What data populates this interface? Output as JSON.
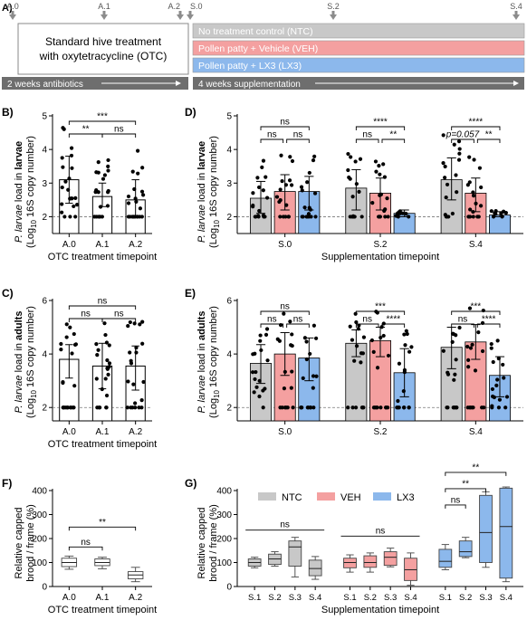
{
  "colors": {
    "ntc": "#c8c8c8",
    "veh": "#f4a0a0",
    "lx3": "#8cb8ec",
    "arrow_bar": "#6e6e6e",
    "timeline_marker": "#8c8c8c"
  },
  "panel_a": {
    "label": "A)",
    "timepoints": [
      "A.0",
      "A.1",
      "A.2",
      "S.0",
      "S.2",
      "S.4"
    ],
    "otc_box": "Standard hive treatment\nwith oxytetracycline (OTC)",
    "groups": [
      "No treatment control (NTC)",
      "Pollen patty + Vehicle (VEH)",
      "Pollen patty + LX3 (LX3)"
    ],
    "bar_antibiotics": "2 weeks antibiotics",
    "bar_supplementation": "4 weeks supplementation"
  },
  "ylabel_larvae": {
    "species": "P. larvae",
    "pre": " load in ",
    "tissue": "larvae",
    "line2": "(Log10 16S copy number)"
  },
  "ylabel_adults": {
    "species": "P. larvae",
    "pre": " load in ",
    "tissue": "adults",
    "line2": "(Log10 16S copy number)"
  },
  "ylabel_brood": {
    "line1": "Relative capped",
    "line2": "brood / frame (%)"
  },
  "chart_data": [
    {
      "panel": "B)",
      "type": "bar",
      "xlabel": "OTC treatment timepoint",
      "categories": [
        "A.0",
        "A.1",
        "A.2"
      ],
      "ylim": [
        1.5,
        5
      ],
      "yticks": [
        2,
        3,
        4,
        5
      ],
      "values": [
        3.1,
        2.6,
        2.5
      ],
      "sd_low": [
        2.4,
        2.3,
        2.0
      ],
      "sd_high": [
        3.8,
        3.0,
        3.1
      ],
      "dashed_line": 2,
      "significance": [
        {
          "from": 0,
          "to": 1,
          "level": 0,
          "label": "**"
        },
        {
          "from": 1,
          "to": 2,
          "level": 0,
          "label": "ns"
        },
        {
          "from": 0,
          "to": 2,
          "level": 1,
          "label": "***"
        }
      ]
    },
    {
      "panel": "D)",
      "type": "bar",
      "xlabel": "Supplementation timepoint",
      "categories": [
        "S.0",
        "S.2",
        "S.4"
      ],
      "ylim": [
        1.5,
        5
      ],
      "yticks": [
        2,
        3,
        4,
        5
      ],
      "series": [
        {
          "name": "NTC",
          "values": [
            2.55,
            2.85,
            3.1
          ],
          "sd_low": [
            2.1,
            2.2,
            2.5
          ],
          "sd_high": [
            3.05,
            3.4,
            3.75
          ]
        },
        {
          "name": "VEH",
          "values": [
            2.75,
            2.7,
            2.7
          ],
          "sd_low": [
            2.2,
            2.2,
            2.15
          ],
          "sd_high": [
            3.25,
            3.15,
            3.15
          ]
        },
        {
          "name": "LX3",
          "values": [
            2.75,
            2.1,
            2.05
          ],
          "sd_low": [
            2.2,
            2.0,
            2.0
          ],
          "sd_high": [
            3.2,
            2.2,
            2.15
          ]
        }
      ],
      "dashed_line": 2,
      "significance": [
        {
          "group": 0,
          "from": 0,
          "to": 1,
          "level": 0,
          "label": "ns"
        },
        {
          "group": 0,
          "from": 1,
          "to": 2,
          "level": 0,
          "label": "ns"
        },
        {
          "group": 0,
          "from": 0,
          "to": 2,
          "level": 1,
          "label": "ns"
        },
        {
          "group": 1,
          "from": 0,
          "to": 1,
          "level": 0,
          "label": "ns"
        },
        {
          "group": 1,
          "from": 1,
          "to": 2,
          "level": 0,
          "label": "**"
        },
        {
          "group": 1,
          "from": 0,
          "to": 2,
          "level": 1,
          "label": "****"
        },
        {
          "group": 2,
          "from": 0,
          "to": 1,
          "level": 0,
          "label": "p=0.057"
        },
        {
          "group": 2,
          "from": 1,
          "to": 2,
          "level": 0,
          "label": "**"
        },
        {
          "group": 2,
          "from": 0,
          "to": 2,
          "level": 1,
          "label": "****"
        }
      ]
    },
    {
      "panel": "C)",
      "type": "bar",
      "xlabel": "OTC treatment timepoint",
      "categories": [
        "A.0",
        "A.1",
        "A.2"
      ],
      "ylim": [
        1.5,
        6
      ],
      "yticks": [
        2,
        4,
        6
      ],
      "values": [
        3.8,
        3.55,
        3.55
      ],
      "sd_low": [
        3.1,
        2.7,
        2.65
      ],
      "sd_high": [
        4.35,
        4.4,
        4.3
      ],
      "dashed_line": 2,
      "significance": [
        {
          "from": 0,
          "to": 1,
          "level": 0,
          "label": "ns"
        },
        {
          "from": 1,
          "to": 2,
          "level": 0,
          "label": "ns"
        },
        {
          "from": 0,
          "to": 2,
          "level": 1,
          "label": "ns"
        }
      ]
    },
    {
      "panel": "E)",
      "type": "bar",
      "xlabel": "",
      "categories": [
        "S.0",
        "S.2",
        "S.4"
      ],
      "ylim": [
        1.5,
        6
      ],
      "yticks": [
        2,
        4,
        6
      ],
      "series": [
        {
          "name": "NTC",
          "values": [
            3.65,
            4.4,
            4.25
          ],
          "sd_low": [
            2.9,
            3.9,
            3.45
          ],
          "sd_high": [
            4.35,
            4.9,
            5.0
          ]
        },
        {
          "name": "VEH",
          "values": [
            4.0,
            4.5,
            4.45
          ],
          "sd_low": [
            3.2,
            3.9,
            3.8
          ],
          "sd_high": [
            4.8,
            5.0,
            5.1
          ]
        },
        {
          "name": "LX3",
          "values": [
            3.85,
            3.3,
            3.2
          ],
          "sd_low": [
            3.0,
            2.4,
            2.4
          ],
          "sd_high": [
            4.6,
            4.2,
            3.9
          ]
        }
      ],
      "dashed_line": 2,
      "significance": [
        {
          "group": 0,
          "from": 0,
          "to": 1,
          "level": 0,
          "label": "ns"
        },
        {
          "group": 0,
          "from": 1,
          "to": 2,
          "level": 0,
          "label": "ns"
        },
        {
          "group": 0,
          "from": 0,
          "to": 2,
          "level": 1,
          "label": "ns"
        },
        {
          "group": 1,
          "from": 0,
          "to": 1,
          "level": 0,
          "label": "ns"
        },
        {
          "group": 1,
          "from": 1,
          "to": 2,
          "level": 0,
          "label": "****"
        },
        {
          "group": 1,
          "from": 0,
          "to": 2,
          "level": 1,
          "label": "***"
        },
        {
          "group": 2,
          "from": 0,
          "to": 1,
          "level": 0,
          "label": "ns"
        },
        {
          "group": 2,
          "from": 1,
          "to": 2,
          "level": 0,
          "label": "****"
        },
        {
          "group": 2,
          "from": 0,
          "to": 2,
          "level": 1,
          "label": "***"
        }
      ]
    },
    {
      "panel": "F)",
      "type": "box",
      "xlabel": "OTC treatment timepoint",
      "categories": [
        "A.0",
        "A.1",
        "A.2"
      ],
      "ylim": [
        0,
        400
      ],
      "yticks": [
        0,
        100,
        200,
        300,
        400
      ],
      "boxes": [
        {
          "min": 72,
          "q1": 83,
          "median": 100,
          "q3": 118,
          "max": 127
        },
        {
          "min": 74,
          "q1": 87,
          "median": 100,
          "q3": 115,
          "max": 122
        },
        {
          "min": 20,
          "q1": 32,
          "median": 48,
          "q3": 62,
          "max": 80
        }
      ],
      "significance": [
        {
          "from": 0,
          "to": 1,
          "level": 0,
          "label": "ns"
        },
        {
          "from": 0,
          "to": 2,
          "level": 1,
          "label": "**"
        }
      ]
    },
    {
      "panel": "G)",
      "type": "box",
      "xlabel": "Supplementation timepoint",
      "categories": [
        "S.1",
        "S.2",
        "S.3",
        "S.4"
      ],
      "ylim": [
        0,
        400
      ],
      "yticks": [
        0,
        100,
        200,
        300,
        400
      ],
      "legend": [
        "NTC",
        "VEH",
        "LX3"
      ],
      "groups": [
        {
          "name": "NTC",
          "boxes": [
            {
              "min": 78,
              "q1": 85,
              "median": 100,
              "q3": 115,
              "max": 122
            },
            {
              "min": 85,
              "q1": 92,
              "median": 115,
              "q3": 135,
              "max": 145
            },
            {
              "min": 40,
              "q1": 85,
              "median": 165,
              "q3": 190,
              "max": 205
            },
            {
              "min": 30,
              "q1": 45,
              "median": 75,
              "q3": 110,
              "max": 125
            }
          ]
        },
        {
          "name": "VEH",
          "boxes": [
            {
              "min": 60,
              "q1": 78,
              "median": 100,
              "q3": 118,
              "max": 132
            },
            {
              "min": 60,
              "q1": 80,
              "median": 100,
              "q3": 128,
              "max": 140
            },
            {
              "min": 82,
              "q1": 88,
              "median": 122,
              "q3": 145,
              "max": 160
            },
            {
              "min": 5,
              "q1": 25,
              "median": 70,
              "q3": 118,
              "max": 140
            }
          ]
        },
        {
          "name": "LX3",
          "boxes": [
            {
              "min": 70,
              "q1": 80,
              "median": 105,
              "q3": 155,
              "max": 175
            },
            {
              "min": 120,
              "q1": 125,
              "median": 145,
              "q3": 190,
              "max": 205
            },
            {
              "min": 80,
              "q1": 100,
              "median": 225,
              "q3": 380,
              "max": 395
            },
            {
              "min": 20,
              "q1": 35,
              "median": 250,
              "q3": 410,
              "max": 415
            }
          ]
        }
      ],
      "significance": [
        {
          "group": 0,
          "from": 0,
          "to": 3,
          "level": 0,
          "label": "ns"
        },
        {
          "group": 1,
          "from": 0,
          "to": 3,
          "level": 0,
          "label": "ns"
        },
        {
          "group": 2,
          "from": 0,
          "to": 1,
          "level": 0,
          "label": "ns"
        },
        {
          "group": 2,
          "from": 0,
          "to": 2,
          "level": 1,
          "label": "**"
        },
        {
          "group": 2,
          "from": 0,
          "to": 3,
          "level": 2,
          "label": "**"
        }
      ]
    }
  ]
}
